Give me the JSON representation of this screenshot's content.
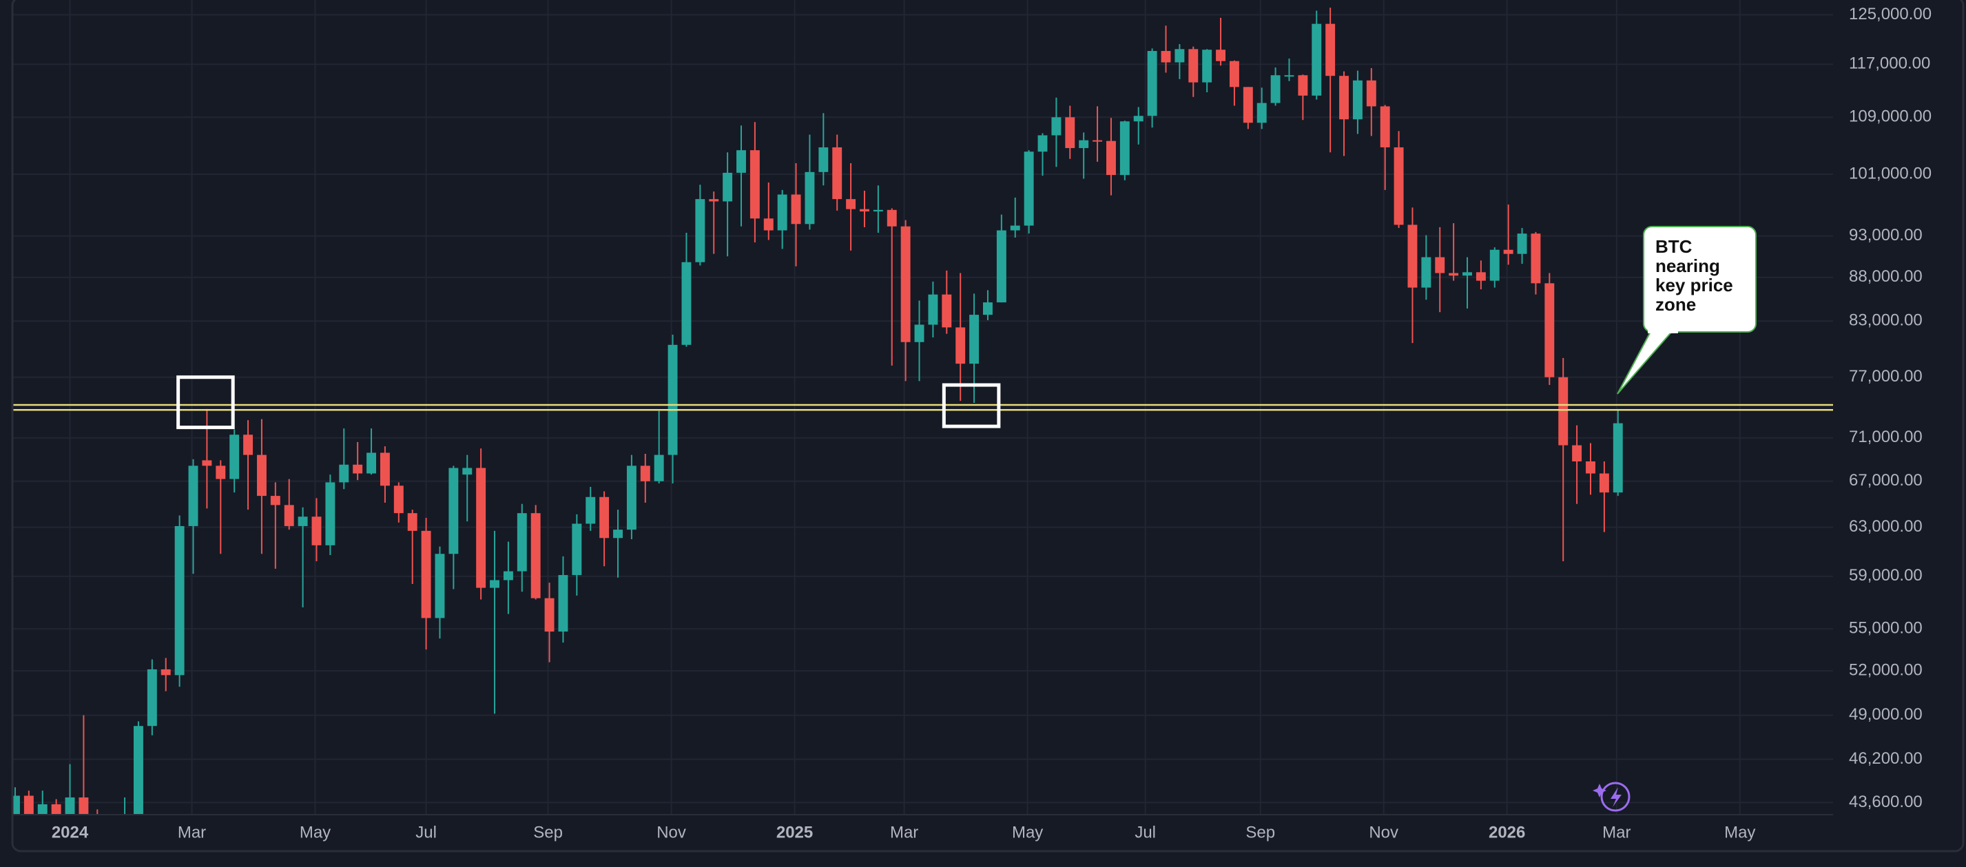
{
  "chart_data": {
    "type": "candlestick",
    "annotation": "BTC nearing key price zone",
    "up_color": "#26a69a",
    "down_color": "#ef5350",
    "log_scale": true,
    "grid": true,
    "xlim": [
      -0.2,
      132.7
    ],
    "ylim": [
      42900,
      127500
    ],
    "yticks": [
      {
        "value": 125000,
        "label": "125,000.00"
      },
      {
        "value": 117000,
        "label": "117,000.00"
      },
      {
        "value": 109000,
        "label": "109,000.00"
      },
      {
        "value": 101000,
        "label": "101,000.00"
      },
      {
        "value": 93000,
        "label": "93,000.00"
      },
      {
        "value": 88000,
        "label": "88,000.00"
      },
      {
        "value": 83000,
        "label": "83,000.00"
      },
      {
        "value": 77000,
        "label": "77,000.00"
      },
      {
        "value": 71000,
        "label": "71,000.00"
      },
      {
        "value": 67000,
        "label": "67,000.00"
      },
      {
        "value": 63000,
        "label": "63,000.00"
      },
      {
        "value": 59000,
        "label": "59,000.00"
      },
      {
        "value": 55000,
        "label": "55,000.00"
      },
      {
        "value": 52000,
        "label": "52,000.00"
      },
      {
        "value": 49000,
        "label": "49,000.00"
      },
      {
        "value": 46200,
        "label": "46,200.00"
      },
      {
        "value": 43600,
        "label": "43,600.00"
      }
    ],
    "xticks": [
      {
        "value": 4.0,
        "label": "2024"
      },
      {
        "value": 12.9,
        "label": "Mar"
      },
      {
        "value": 21.9,
        "label": "May"
      },
      {
        "value": 30.0,
        "label": "Jul"
      },
      {
        "value": 38.9,
        "label": "Sep"
      },
      {
        "value": 47.9,
        "label": "Nov"
      },
      {
        "value": 56.9,
        "label": "2025"
      },
      {
        "value": 64.9,
        "label": "Mar"
      },
      {
        "value": 73.9,
        "label": "May"
      },
      {
        "value": 82.5,
        "label": "Jul"
      },
      {
        "value": 90.9,
        "label": "Sep"
      },
      {
        "value": 99.9,
        "label": "Nov"
      },
      {
        "value": 108.9,
        "label": "2026"
      },
      {
        "value": 116.9,
        "label": "Mar"
      },
      {
        "value": 125.9,
        "label": "May"
      }
    ],
    "levels": {
      "values": [
        74200,
        73700
      ],
      "color": "#e8dc78"
    },
    "boxes": {
      "color": "#ffffff",
      "items": [
        {
          "x": [
            11.9,
            15.9
          ],
          "y": [
            72000,
            77000
          ]
        },
        {
          "x": [
            67.8,
            71.8
          ],
          "y": [
            72100,
            76200
          ]
        }
      ]
    },
    "open": [
      39900,
      44000,
      41400,
      43500,
      42300,
      43900,
      41700,
      41600,
      42000,
      42600,
      48300,
      52100,
      51700,
      63100,
      68900,
      68400,
      67200,
      71300,
      69400,
      65700,
      64900,
      63100,
      63900,
      61500,
      66900,
      68500,
      67700,
      69600,
      66600,
      64200,
      62700,
      55800,
      60800,
      67600,
      68200,
      58100,
      58700,
      59400,
      64200,
      57300,
      54800,
      59100,
      63300,
      65600,
      62100,
      62800,
      68400,
      67000,
      69400,
      80400,
      89800,
      97700,
      97400,
      101200,
      104300,
      95200,
      93700,
      98300,
      94500,
      101300,
      104700,
      97700,
      96400,
      96100,
      96300,
      94200,
      80700,
      82600,
      86000,
      82300,
      78400,
      83700,
      85100,
      93700,
      94300,
      104100,
      106400,
      109000,
      104600,
      105700,
      105600,
      100900,
      108400,
      109200,
      119100,
      117300,
      119400,
      114200,
      119300,
      117500,
      113500,
      108200,
      111100,
      115200,
      115300,
      112200,
      123500,
      115200,
      108700,
      114500,
      110600,
      104700,
      94400,
      86800,
      90400,
      88500,
      88200,
      88600,
      87600,
      91300,
      90800,
      93300,
      87300,
      77000,
      70300,
      68800,
      67700,
      66000
    ],
    "high": [
      44500,
      44300,
      44300,
      43800,
      45900,
      49000,
      43200,
      42800,
      43900,
      48600,
      52800,
      52900,
      64000,
      69000,
      73800,
      68900,
      71800,
      72700,
      72800,
      66900,
      67200,
      64700,
      65500,
      67600,
      71900,
      70600,
      71900,
      70200,
      66900,
      64500,
      63800,
      61400,
      68400,
      69400,
      70000,
      62700,
      61800,
      65000,
      64900,
      58500,
      60600,
      64100,
      66500,
      66100,
      64500,
      69400,
      69500,
      73600,
      81500,
      93400,
      99600,
      98700,
      104000,
      107800,
      108300,
      99900,
      98900,
      102500,
      106500,
      109600,
      106500,
      102500,
      98800,
      99500,
      96500,
      95000,
      85300,
      87500,
      88800,
      88500,
      86100,
      86500,
      95700,
      97900,
      104300,
      106700,
      111900,
      110700,
      106800,
      110600,
      108900,
      108500,
      110500,
      119500,
      123200,
      120200,
      119800,
      119400,
      124500,
      117600,
      113500,
      113400,
      116500,
      117900,
      115400,
      125700,
      126200,
      115900,
      116000,
      116400,
      110800,
      107000,
      96600,
      93100,
      94100,
      94600,
      90400,
      90000,
      91600,
      97000,
      94000,
      93500,
      88500,
      79000,
      72200,
      70500,
      68800,
      73800
    ],
    "low": [
      39300,
      40500,
      40500,
      41300,
      40800,
      41500,
      40300,
      38500,
      41800,
      42300,
      47700,
      50600,
      50900,
      59200,
      64600,
      60800,
      66000,
      64500,
      60800,
      59600,
      62800,
      56600,
      60200,
      60700,
      66300,
      67100,
      67600,
      65100,
      63400,
      58400,
      53500,
      54300,
      58000,
      63500,
      57200,
      49100,
      56100,
      57800,
      57200,
      52600,
      54000,
      57500,
      62700,
      59800,
      58900,
      62000,
      65100,
      66800,
      66800,
      80200,
      89400,
      90800,
      90500,
      94200,
      92200,
      92500,
      91400,
      89300,
      93800,
      99500,
      96200,
      91200,
      94100,
      93400,
      78200,
      76600,
      76600,
      81200,
      81600,
      74600,
      74400,
      83100,
      85100,
      92800,
      93300,
      100800,
      102000,
      103100,
      100400,
      102700,
      98200,
      100200,
      105100,
      107500,
      115700,
      114700,
      112000,
      112700,
      116800,
      110700,
      107300,
      107300,
      110700,
      114400,
      108600,
      111600,
      104000,
      103500,
      106600,
      106300,
      98900,
      94000,
      80600,
      85400,
      84000,
      87600,
      84400,
      86600,
      86800,
      89500,
      89600,
      86000,
      76200,
      60200,
      65000,
      65800,
      62600,
      65700
    ],
    "close": [
      44000,
      41400,
      43500,
      42300,
      43900,
      41700,
      41600,
      42000,
      42600,
      48300,
      52100,
      51700,
      63100,
      68400,
      68400,
      67200,
      71300,
      69400,
      65700,
      64900,
      63100,
      63900,
      61500,
      66900,
      68500,
      67700,
      69600,
      66600,
      64200,
      62700,
      55800,
      60800,
      68200,
      68200,
      58100,
      58700,
      59400,
      64200,
      57300,
      54800,
      59100,
      63300,
      65600,
      62100,
      62800,
      68400,
      67000,
      69400,
      80400,
      89800,
      97700,
      97400,
      101200,
      104300,
      95200,
      93700,
      98300,
      94500,
      101300,
      104700,
      97700,
      96400,
      96100,
      96300,
      94200,
      80700,
      82600,
      86000,
      82300,
      78400,
      83700,
      85100,
      93700,
      94300,
      104100,
      106400,
      109000,
      104600,
      105700,
      105600,
      100900,
      108400,
      109200,
      119100,
      117300,
      119400,
      114200,
      119300,
      117500,
      113500,
      108200,
      111100,
      115300,
      115300,
      112200,
      123500,
      115200,
      108700,
      114500,
      110600,
      104700,
      94400,
      86800,
      90400,
      88500,
      88200,
      88600,
      87600,
      91300,
      90800,
      93300,
      87300,
      77000,
      70300,
      68800,
      67700,
      66000,
      72400
    ]
  }
}
